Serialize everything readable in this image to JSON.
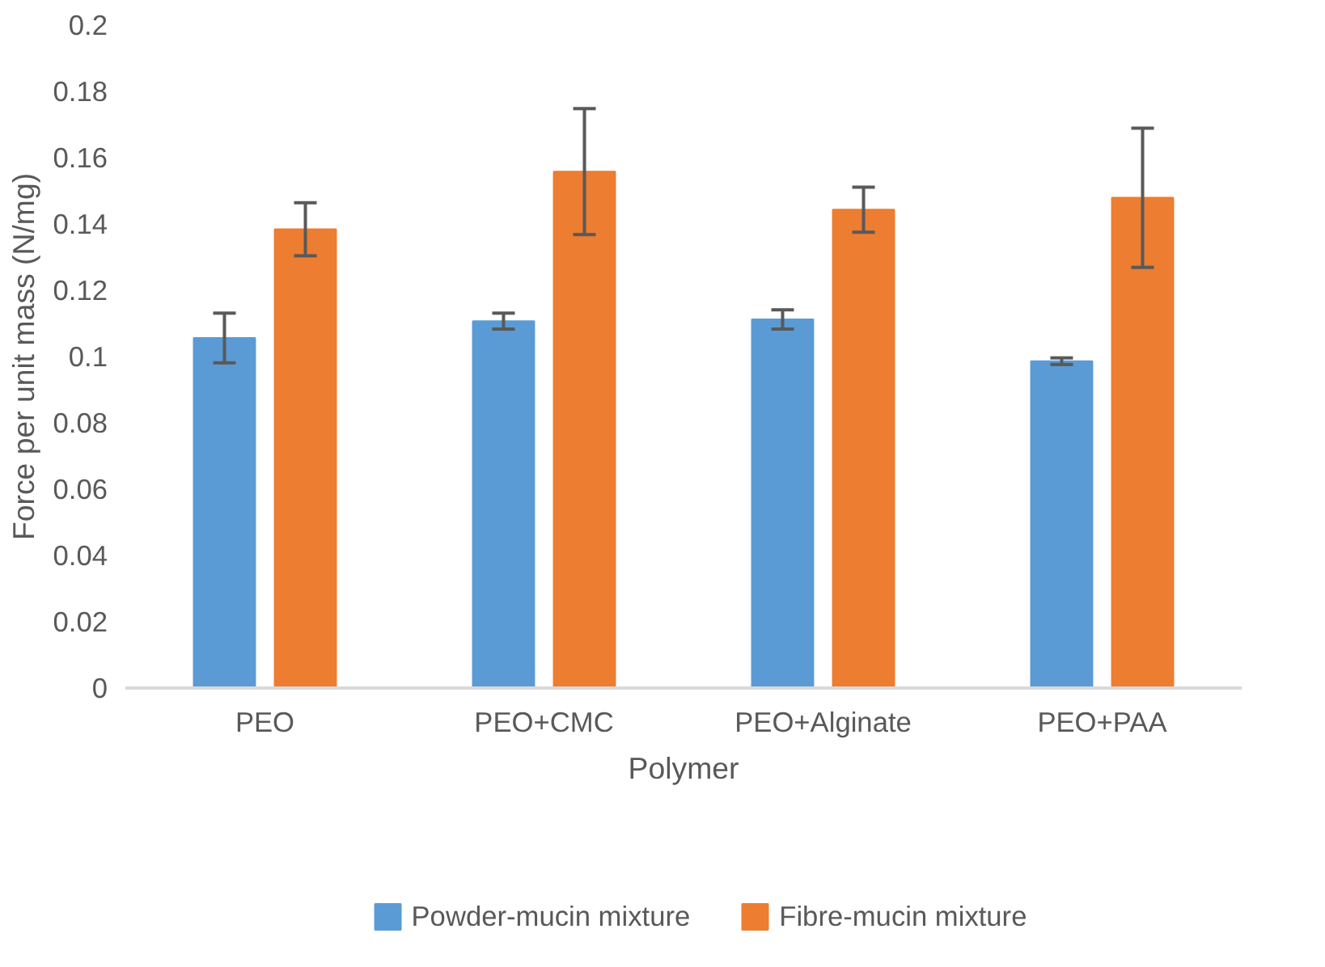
{
  "chart_data": {
    "type": "bar",
    "xlabel": "Polymer",
    "ylabel": "Force per unit mass (N/mg)",
    "categories": [
      "PEO",
      "PEO+CMC",
      "PEO+Alginate",
      "PEO+PAA"
    ],
    "series": [
      {
        "name": "Powder-mucin mixture",
        "color": "#5b9bd5",
        "values": [
          0.1056,
          0.1107,
          0.1112,
          0.0986
        ],
        "errors": [
          0.0075,
          0.0024,
          0.0029,
          0.001
        ]
      },
      {
        "name": "Fibre-mucin mixture",
        "color": "#ed7d31",
        "values": [
          0.1384,
          0.1558,
          0.1443,
          0.1479
        ],
        "errors": [
          0.008,
          0.019,
          0.0068,
          0.021
        ]
      }
    ],
    "ylim": [
      0,
      0.2
    ],
    "yticks": [
      0,
      0.02,
      0.04,
      0.06,
      0.08,
      0.1,
      0.12,
      0.14,
      0.16,
      0.18,
      0.2
    ],
    "grid": false,
    "legend": "bottom"
  }
}
